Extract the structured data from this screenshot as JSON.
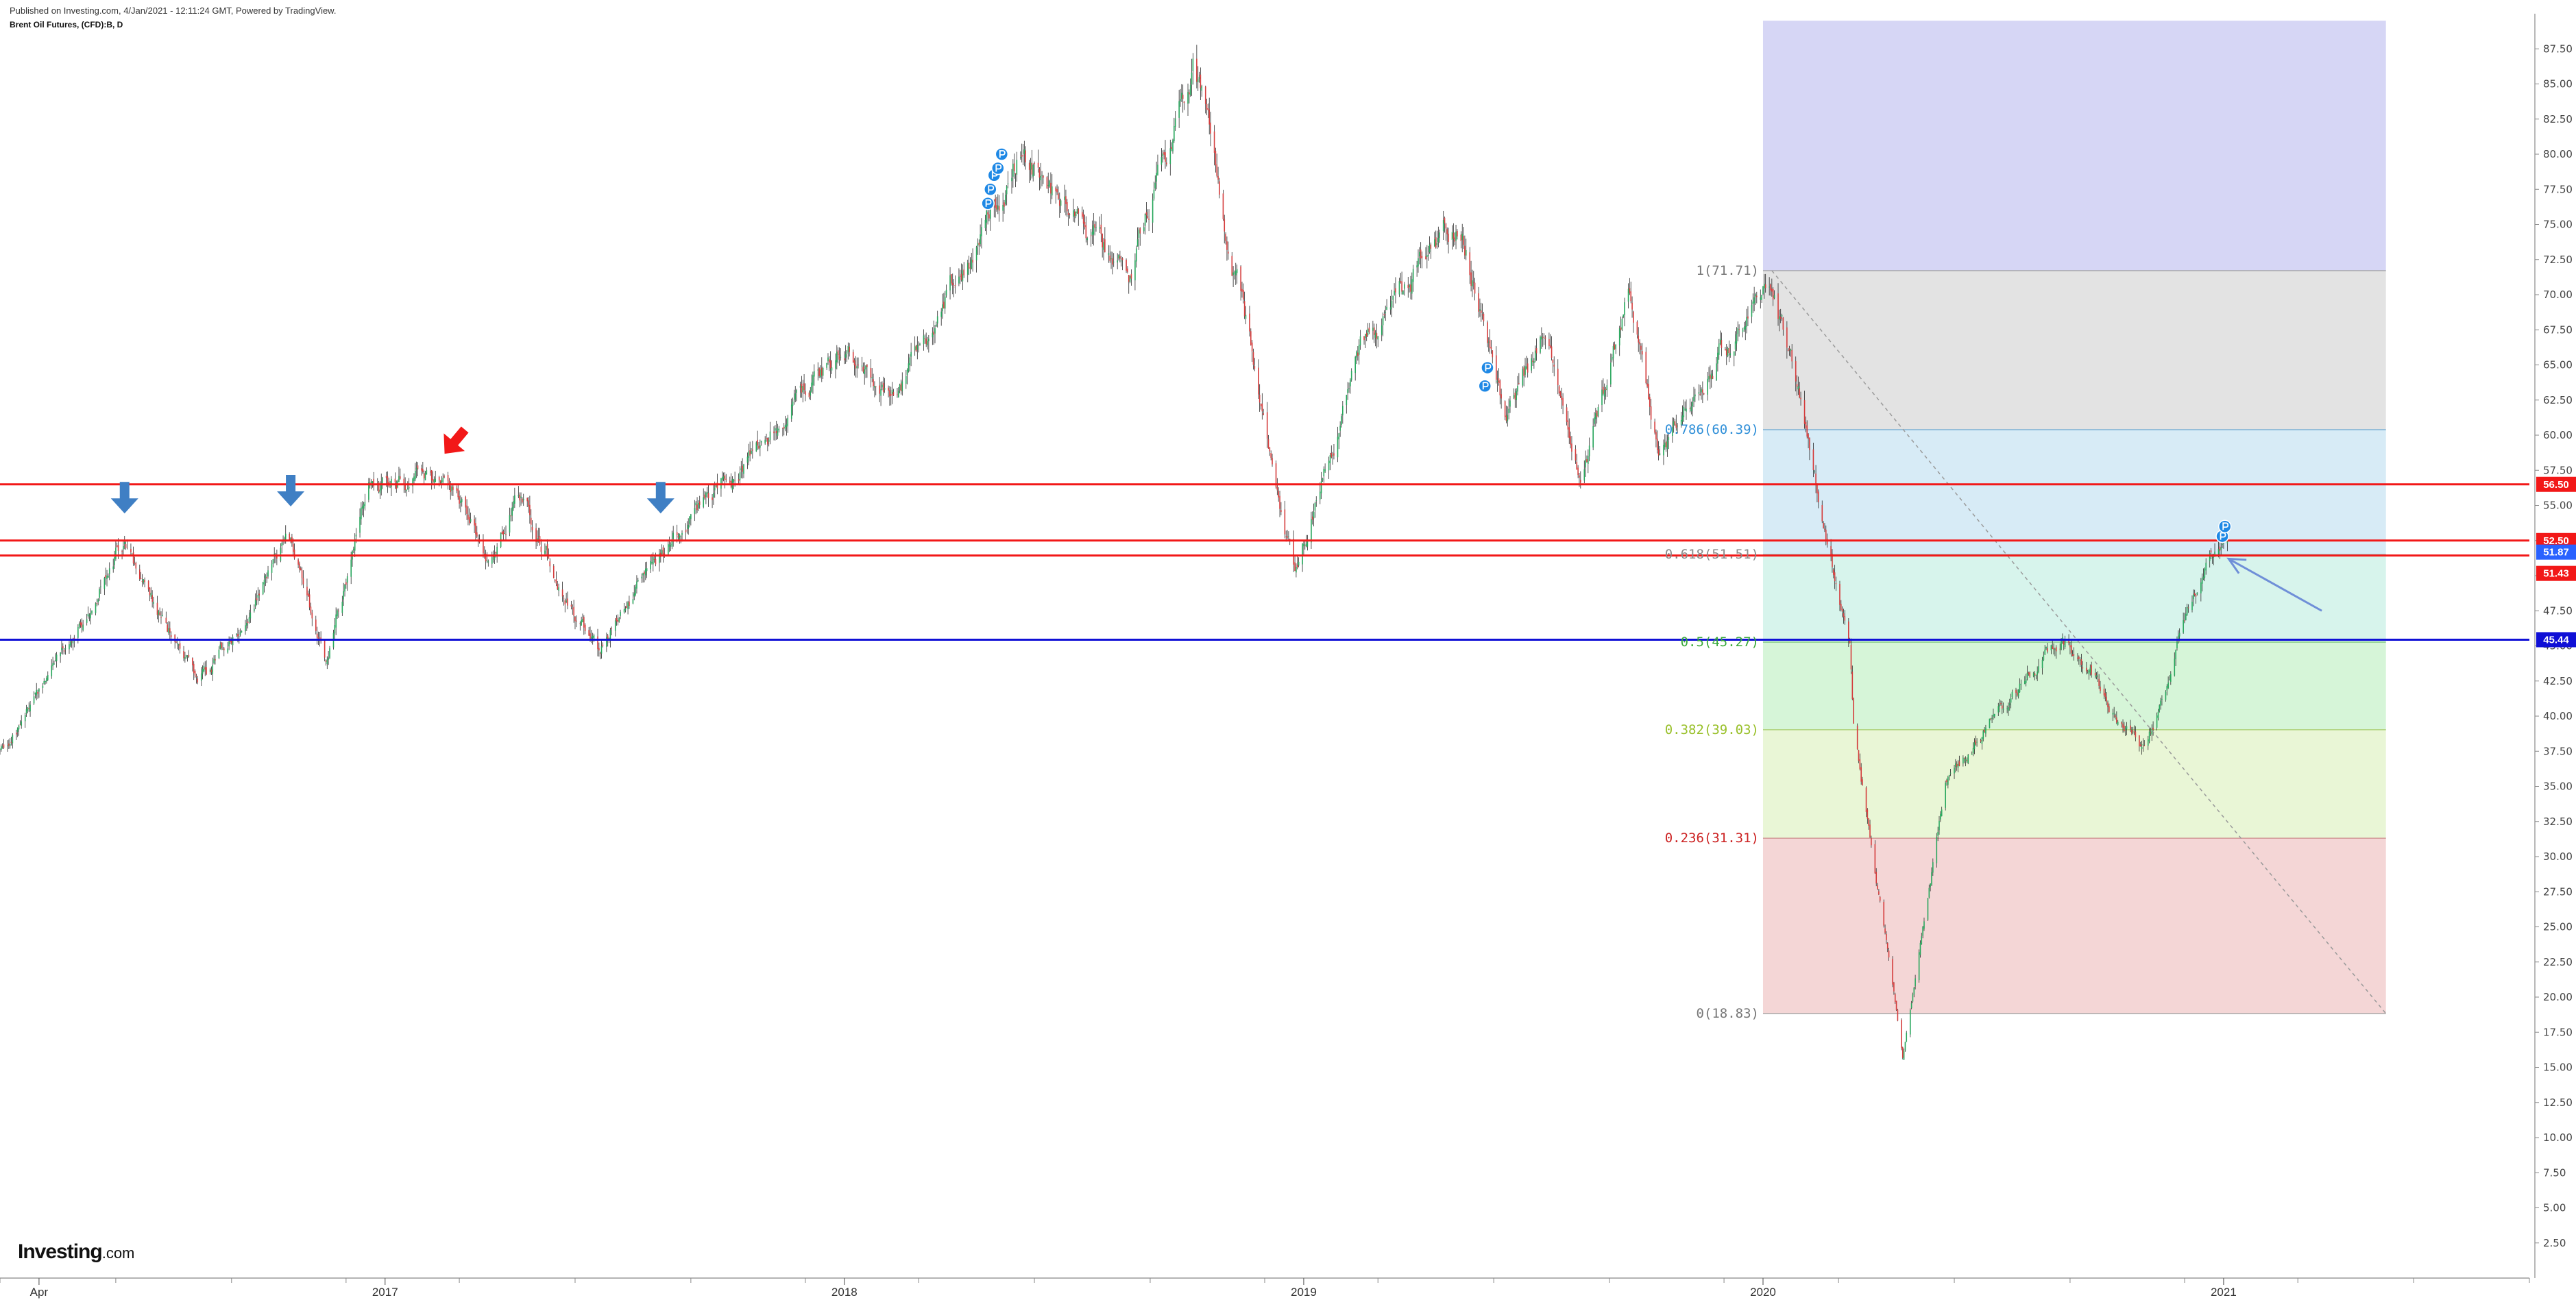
{
  "header": {
    "published": "Published on Investing.com, 4/Jan/2021 - 12:11:24 GMT, Powered by TradingView.",
    "symbol": "Brent Oil Futures, (CFD):B, D"
  },
  "logo": {
    "brand": "Investing",
    "suffix": ".com"
  },
  "chart_data": {
    "type": "candlestick",
    "title": "",
    "y_axis": {
      "side": "right",
      "min": 0,
      "max": 90,
      "ticks": [
        2.5,
        5,
        7.5,
        10,
        12.5,
        15,
        17.5,
        20,
        22.5,
        25,
        27.5,
        30,
        32.5,
        35,
        37.5,
        40,
        42.5,
        45,
        47.5,
        50,
        52.5,
        55,
        57.5,
        60,
        62.5,
        65,
        67.5,
        70,
        72.5,
        75,
        77.5,
        80,
        82.5,
        85,
        87.5
      ]
    },
    "x_axis": {
      "range": [
        "2016-03-01",
        "2021-09-01"
      ],
      "labels": [
        {
          "date": "2016-04-01",
          "label": "Apr"
        },
        {
          "date": "2017-01-01",
          "label": "2017"
        },
        {
          "date": "2018-01-01",
          "label": "2018"
        },
        {
          "date": "2019-01-01",
          "label": "2019"
        },
        {
          "date": "2020-01-01",
          "label": "2020"
        },
        {
          "date": "2021-01-01",
          "label": "2021"
        }
      ]
    },
    "price_path": [
      [
        "2016-03-01",
        37.5
      ],
      [
        "2016-04-10",
        42.5
      ],
      [
        "2016-06-05",
        52.5
      ],
      [
        "2016-08-05",
        42.0
      ],
      [
        "2016-09-15",
        47.5
      ],
      [
        "2016-10-15",
        53.0
      ],
      [
        "2016-11-15",
        44.0
      ],
      [
        "2016-12-20",
        56.0
      ],
      [
        "2017-02-20",
        57.0
      ],
      [
        "2017-03-25",
        51.0
      ],
      [
        "2017-04-15",
        56.0
      ],
      [
        "2017-06-20",
        44.5
      ],
      [
        "2017-08-10",
        52.0
      ],
      [
        "2017-10-15",
        58.0
      ],
      [
        "2017-12-31",
        66.5
      ],
      [
        "2018-02-10",
        62.5
      ],
      [
        "2018-05-20",
        80.0
      ],
      [
        "2018-08-15",
        71.0
      ],
      [
        "2018-10-05",
        86.5
      ],
      [
        "2018-12-25",
        50.5
      ],
      [
        "2019-02-15",
        66.0
      ],
      [
        "2019-04-20",
        74.0
      ],
      [
        "2019-05-05",
        75.5
      ],
      [
        "2019-06-10",
        61.0
      ],
      [
        "2019-07-10",
        67.0
      ],
      [
        "2019-08-10",
        57.0
      ],
      [
        "2019-09-16",
        69.5
      ],
      [
        "2019-10-10",
        58.5
      ],
      [
        "2020-01-08",
        71.7
      ],
      [
        "2020-02-20",
        53.0
      ],
      [
        "2020-03-10",
        45.0
      ],
      [
        "2020-03-13",
        39.0
      ],
      [
        "2020-04-21",
        16.0
      ],
      [
        "2020-05-25",
        35.0
      ],
      [
        "2020-08-25",
        45.8
      ],
      [
        "2020-10-30",
        37.5
      ],
      [
        "2020-12-20",
        51.5
      ],
      [
        "2021-01-04",
        51.9
      ]
    ],
    "horizontal_lines": [
      {
        "price": 56.5,
        "color": "#f21818",
        "label": "56.50"
      },
      {
        "price": 52.5,
        "color": "#f21818",
        "label": "52.50"
      },
      {
        "price": 51.43,
        "color": "#f21818",
        "label": "51.43"
      },
      {
        "price": 45.44,
        "color": "#1010d6",
        "label": "45.44"
      }
    ],
    "current_price": {
      "value": 51.87,
      "label": "51.87",
      "color": "#2962ff"
    },
    "fibonacci": {
      "start_date": "2020-01-01",
      "end_date": "2021-05-10",
      "high": 71.71,
      "low": 18.83,
      "levels": [
        {
          "ratio": 1,
          "price": 71.71,
          "label": "1(71.71)",
          "fill": "#e3e3e3",
          "line": "#9a9a9a",
          "text": "#777777"
        },
        {
          "ratio": 0.786,
          "price": 60.39,
          "label": "0.786(60.39)",
          "fill": "#d7ebf6",
          "line": "#6aa6d0",
          "text": "#2f8fd8"
        },
        {
          "ratio": 0.618,
          "price": 51.51,
          "label": "0.618(51.51)",
          "fill": "#d7f4ec",
          "line": "#8fbfb3",
          "text": "#8a8a8a"
        },
        {
          "ratio": 0.5,
          "price": 45.27,
          "label": "0.5(45.27)",
          "fill": "#d6f5d8",
          "line": "#6fbf6f",
          "text": "#3aaa3a"
        },
        {
          "ratio": 0.382,
          "price": 39.03,
          "label": "0.382(39.03)",
          "fill": "#e9f6d6",
          "line": "#a8cc6a",
          "text": "#99c02a"
        },
        {
          "ratio": 0.236,
          "price": 31.31,
          "label": "0.236(31.31)",
          "fill": "#f4d6d6",
          "line": "#cc8a8a",
          "text": "#cc2222"
        },
        {
          "ratio": 0,
          "price": 18.83,
          "label": "0(18.83)",
          "fill": "#f4d6d6",
          "line": "#9a9a9a",
          "text": "#777777"
        }
      ],
      "extension_top": {
        "price": 89.5,
        "fill": "#d6d6f5"
      }
    },
    "annotations": {
      "down_arrows_blue": [
        {
          "date": "2016-06-08",
          "price": 55.5
        },
        {
          "date": "2016-10-18",
          "price": 56.0
        },
        {
          "date": "2017-08-08",
          "price": 55.5
        }
      ],
      "down_arrow_red": {
        "date": "2017-02-25",
        "price": 59.5
      },
      "pointer_arrow_blue": {
        "from": [
          "2021-03-20",
          47.5
        ],
        "to": [
          "2021-01-05",
          51.2
        ]
      },
      "dividend_markers": [
        {
          "date": "2018-04-25",
          "price": 76.5
        },
        {
          "date": "2018-04-27",
          "price": 77.5
        },
        {
          "date": "2018-04-30",
          "price": 78.5
        },
        {
          "date": "2018-05-03",
          "price": 79.0
        },
        {
          "date": "2018-05-06",
          "price": 80.0
        },
        {
          "date": "2019-05-25",
          "price": 63.5
        },
        {
          "date": "2019-05-27",
          "price": 64.8
        },
        {
          "date": "2020-12-31",
          "price": 52.8
        },
        {
          "date": "2021-01-02",
          "price": 53.5
        }
      ],
      "diagonal_dotted": {
        "from": [
          "2020-01-08",
          71.71
        ],
        "to": [
          "2021-05-10",
          18.83
        ]
      }
    },
    "colors": {
      "up": "#26a65b",
      "down": "#d43c3c",
      "wick": "#333333",
      "axis": "#888888"
    }
  }
}
